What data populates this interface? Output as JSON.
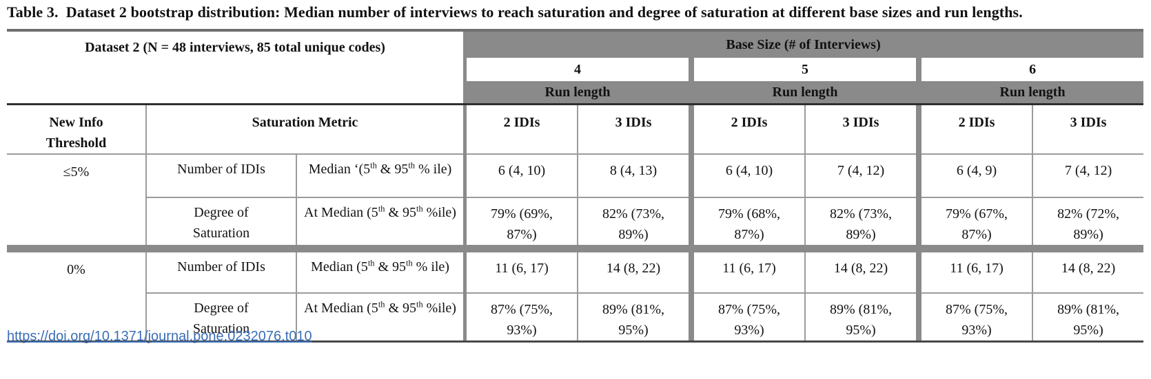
{
  "title": "Table 3.  Dataset 2 bootstrap distribution: Median number of interviews to reach saturation and degree of saturation at different base sizes and run lengths.",
  "table": {
    "left_header": "Dataset 2 (N = 48 interviews, 85 total unique codes)",
    "base_size_header": "Base Size (# of Interviews)",
    "base_sizes": [
      "4",
      "5",
      "6"
    ],
    "run_length_label": "Run length",
    "col_headers": {
      "threshold": "New Info Threshold",
      "metric": "Saturation Metric",
      "run2": "2 IDIs",
      "run3": "3 IDIs"
    },
    "sections": [
      {
        "threshold": "≤5%",
        "rows": [
          {
            "metric": "Number of IDIs",
            "desc": "Median ‘(5^{th} & 95^{th} % ile)",
            "values": [
              "6 (4, 10)",
              "8 (4, 13)",
              "6 (4, 10)",
              "7 (4, 12)",
              "6 (4, 9)",
              "7 (4, 12)"
            ]
          },
          {
            "metric": "Degree of Saturation",
            "desc": "At Median (5^{th} & 95^{th} %ile)",
            "values": [
              "79% (69%, 87%)",
              "82% (73%, 89%)",
              "79% (68%, 87%)",
              "82% (73%, 89%)",
              "79% (67%, 87%)",
              "82% (72%, 89%)"
            ]
          }
        ]
      },
      {
        "threshold": "0%",
        "rows": [
          {
            "metric": "Number of IDIs",
            "desc": "Median (5^{th} & 95^{th} % ile)",
            "values": [
              "11 (6, 17)",
              "14 (8, 22)",
              "11 (6, 17)",
              "14 (8, 22)",
              "11 (6, 17)",
              "14 (8, 22)"
            ]
          },
          {
            "metric": "Degree of Saturation",
            "desc": "At Median (5^{th} & 95^{th} %ile)",
            "values": [
              "87% (75%, 93%)",
              "89% (81%, 95%)",
              "87% (75%, 93%)",
              "89% (81%, 95%)",
              "87% (75%, 93%)",
              "89% (81%, 95%)"
            ]
          }
        ]
      }
    ]
  },
  "footer": {
    "doi_link": "https://doi.org/10.1371/journal.pone.0232076.t010"
  },
  "colors": {
    "header_gray": "#8a8a8a",
    "thin_line": "#9b9b9b",
    "dark_rule": "#2e2e2e",
    "link_blue": "#3a6db5"
  }
}
